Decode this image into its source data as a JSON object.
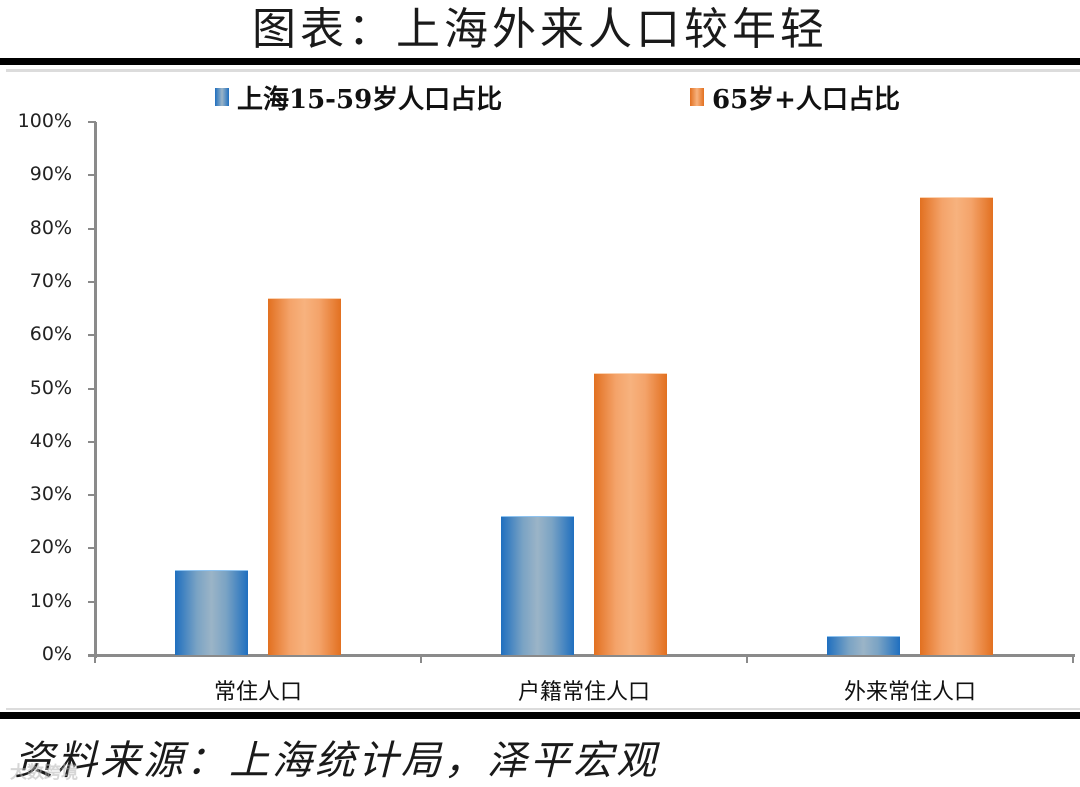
{
  "title": "图表：上海外来人口较年轻",
  "source": "资料来源：上海统计局，泽平宏观",
  "watermark": "大数跨境",
  "legend": [
    {
      "label": "上海15-59岁人口占比",
      "color": "#2e75b6"
    },
    {
      "label": "65岁+人口占比",
      "color": "#ed7d31"
    }
  ],
  "y_ticks": [
    "100%",
    "90%",
    "80%",
    "70%",
    "60%",
    "50%",
    "40%",
    "30%",
    "20%",
    "10%",
    "0%"
  ],
  "categories": [
    "常住人口",
    "户籍常住人口",
    "外来常住人口"
  ],
  "chart_data": {
    "type": "bar",
    "title": "图表：上海外来人口较年轻",
    "xlabel": "",
    "ylabel": "",
    "categories": [
      "常住人口",
      "户籍常住人口",
      "外来常住人口"
    ],
    "series": [
      {
        "name": "上海15-59岁人口占比",
        "color": "#2e75b6",
        "values": [
          16,
          26,
          3.5
        ]
      },
      {
        "name": "65岁+人口占比",
        "color": "#ed7d31",
        "values": [
          67,
          53,
          86
        ]
      }
    ],
    "ylim": [
      0,
      100
    ],
    "y_tick_labels": [
      "0%",
      "10%",
      "20%",
      "30%",
      "40%",
      "50%",
      "60%",
      "70%",
      "80%",
      "90%",
      "100%"
    ],
    "grid": false,
    "legend_position": "top",
    "source": "资料来源：上海统计局，泽平宏观"
  }
}
